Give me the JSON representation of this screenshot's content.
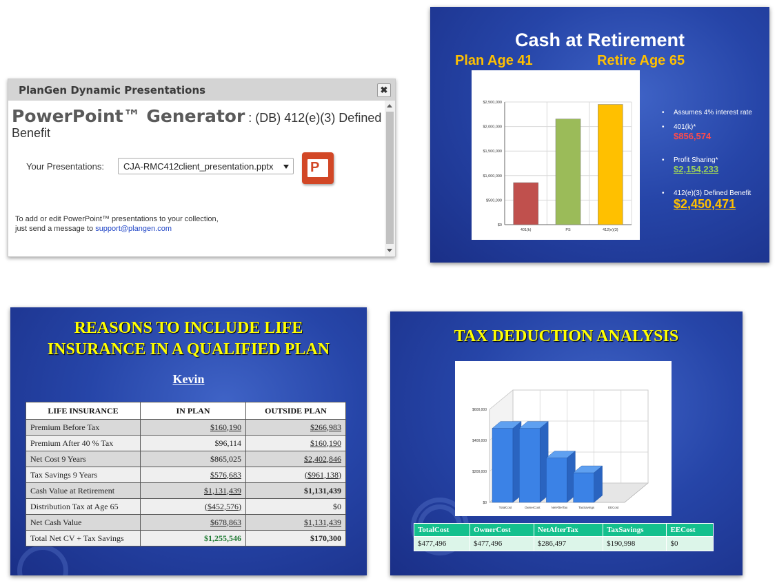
{
  "dialog": {
    "title": "PlanGen Dynamic Presentations",
    "close_label": "✖",
    "heading": "PowerPoint™ Generator",
    "subheading": " : (DB) 412(e)(3) Defined Benefit",
    "presentations_label": "Your Presentations:",
    "presentations_selected": "CJA-RMC412client_presentation.pptx",
    "ppt_letter": "P",
    "help_line1": "To add or edit PowerPoint™ presentations to your collection,",
    "help_line2": "just send a message to ",
    "help_email": "support@plangen.com"
  },
  "slide1": {
    "title": "Cash at Retirement",
    "plan_age": "Plan Age 41",
    "retire_age": "Retire Age 65",
    "bullets": [
      {
        "label": "Assumes 4% interest rate",
        "value": "",
        "color": "#ffffff"
      },
      {
        "label": "401(k)*",
        "value": "$856,574",
        "color": "#ff4b4b"
      },
      {
        "label": "Profit Sharing*",
        "value": "$2,154,233",
        "color": "#9bd15a"
      },
      {
        "label": "412(e)(3) Defined Benefit",
        "value": "$2,450,471",
        "color": "#ffc000"
      }
    ]
  },
  "chart_data": [
    {
      "type": "bar",
      "categories": [
        "401(k)",
        "PS",
        "412(e)(3)"
      ],
      "values": [
        856574,
        2154233,
        2450471
      ],
      "colors": [
        "#c0504d",
        "#9bbb59",
        "#ffc000"
      ],
      "yticks": [
        "$0",
        "$500,000",
        "$1,000,000",
        "$1,500,000",
        "$2,000,000",
        "$2,500,000"
      ],
      "ylim": [
        0,
        2500000
      ],
      "grid": true
    },
    {
      "type": "bar",
      "categories": [
        "TotalCost",
        "OwnerCost",
        "NetAfterTax",
        "TaxSavings",
        "EECost"
      ],
      "values": [
        477496,
        477496,
        286497,
        190998,
        0
      ],
      "color": "#3b82e6",
      "yticks": [
        "$0",
        "$200,000",
        "$400,000",
        "$600,000"
      ],
      "ylim": [
        0,
        600000
      ],
      "grid": true
    }
  ],
  "slide2": {
    "title_line1": "REASONS TO INCLUDE LIFE",
    "title_line2": "INSURANCE IN A QUALIFIED PLAN",
    "name": "Kevin",
    "headers": [
      "LIFE INSURANCE",
      "IN PLAN",
      "OUTSIDE PLAN"
    ],
    "rows": [
      {
        "label": "Premium Before Tax",
        "in_plan": "$160,190",
        "outside": "$266,983"
      },
      {
        "label": "Premium After  40  % Tax",
        "in_plan": "$96,114",
        "outside": "$160,190"
      },
      {
        "label": "Net Cost 9   Years",
        "in_plan": "$865,025",
        "outside": "$2,402,846"
      },
      {
        "label": "Tax Savings 9   Years",
        "in_plan": "$576,683",
        "outside": "($961,138)"
      },
      {
        "label": "Cash Value at Retirement",
        "in_plan": "$1,131,439",
        "outside": "$1,131,439"
      },
      {
        "label": "Distribution Tax at Age 65",
        "in_plan": "($452,576)",
        "outside": "$0"
      },
      {
        "label": "Net Cash Value",
        "in_plan": "$678,863",
        "outside": "$1,131,439"
      },
      {
        "label": "Total Net CV + Tax Savings",
        "in_plan": "$1,255,546",
        "outside": "$170,300"
      }
    ]
  },
  "slide3": {
    "title": "TAX DEDUCTION ANALYSIS",
    "headers": [
      "TotalCost",
      "OwnerCost",
      "NetAfterTax",
      "TaxSavings",
      "EECost"
    ],
    "values": [
      "$477,496",
      "$477,496",
      "$286,497",
      "$190,998",
      "$0"
    ]
  }
}
